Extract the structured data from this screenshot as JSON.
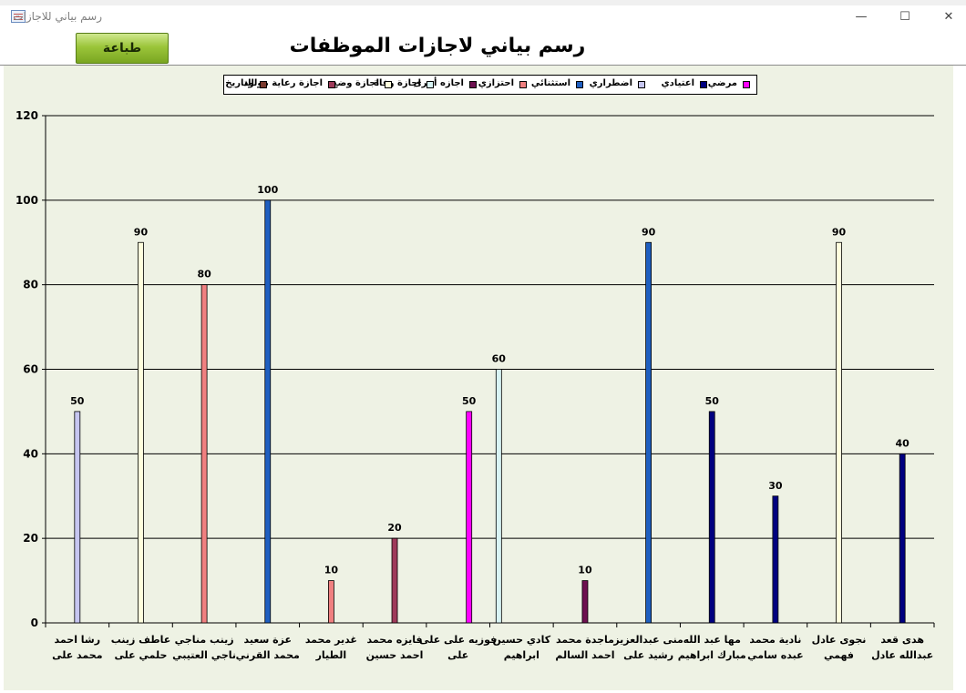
{
  "window": {
    "title": "رسم بياني للاجازات",
    "minimize": "—",
    "maximize": "☐",
    "close": "✕"
  },
  "toolbar": {
    "print_label": "طباعة"
  },
  "page_title": "رسم بياني لاجازات الموظفات",
  "legend_items": [
    {
      "label": "مرضي",
      "color": "#ff00ff"
    },
    {
      "label": "اعتيادي",
      "color": "#000080"
    },
    {
      "label": "اضطراري",
      "color": "#c6c6f0"
    },
    {
      "label": "استثنائي",
      "color": "#1f5fc0"
    },
    {
      "label": "احتزازي",
      "color": "#f08080"
    },
    {
      "label": "اجازه أخرى",
      "color": "#6e1151"
    },
    {
      "label": "اجازة وفاة",
      "color": "#d8f4f4"
    },
    {
      "label": "اجازة وضع",
      "color": "#ffffdd"
    },
    {
      "label": "اجازة رعاية مولود",
      "color": "#9e3a5a"
    },
    {
      "label": "التاريخ",
      "color": "#7b3a2e"
    }
  ],
  "chart_data": {
    "type": "bar",
    "ylim": [
      0,
      120
    ],
    "yticks": [
      0,
      20,
      40,
      60,
      80,
      100,
      120
    ],
    "grid": true,
    "legend_position": "top",
    "categories": [
      [
        "رشا احمد",
        "محمد على"
      ],
      [
        "عاطف زينب",
        "حلمي على"
      ],
      [
        "زينب مناجي",
        "ناجي العتيبي"
      ],
      [
        "عزة سعيد",
        "محمد القرني"
      ],
      [
        "غدير محمد",
        "الطيار"
      ],
      [
        "فايزه محمد",
        "احمد حسين"
      ],
      [
        "فوزيه على على",
        "على"
      ],
      [
        "كادي حسين",
        "ابراهيم"
      ],
      [
        "ماجدة محمد",
        "احمد السالم"
      ],
      [
        "منى عبدالعزيز",
        "رشيد على"
      ],
      [
        "مها عبد الله",
        "مبارك ابراهيم"
      ],
      [
        "نادية محمد",
        "عبده سامي"
      ],
      [
        "نجوى عادل",
        "فهمي"
      ],
      [
        "هدى قعد",
        "عبدالله عادل"
      ]
    ],
    "bars": [
      {
        "category": 0,
        "value": 50,
        "label": "50",
        "color": "#c6c6f0"
      },
      {
        "category": 1,
        "value": 90,
        "label": "90",
        "color": "#ffffdd"
      },
      {
        "category": 2,
        "value": 80,
        "label": "80",
        "color": "#f08080"
      },
      {
        "category": 3,
        "value": 100,
        "label": "100",
        "color": "#1f5fc0"
      },
      {
        "category": 4,
        "value": 10,
        "label": "10",
        "color": "#f08080"
      },
      {
        "category": 5,
        "value": 20,
        "label": "20",
        "color": "#9e3a5a"
      },
      {
        "category": 6,
        "value": 50,
        "label": "50",
        "color": "#ff00ff"
      },
      {
        "category": 7,
        "value": 60,
        "label": "60",
        "color": "#d8f4f4"
      },
      {
        "category": 8,
        "value": 10,
        "label": "10",
        "color": "#6e1151"
      },
      {
        "category": 9,
        "value": 90,
        "label": "90",
        "color": "#1f5fc0"
      },
      {
        "category": 10,
        "value": 50,
        "label": "50",
        "color": "#000080"
      },
      {
        "category": 11,
        "value": 30,
        "label": "30",
        "color": "#000080"
      },
      {
        "category": 12,
        "value": 90,
        "label": "90",
        "color": "#ffffdd"
      },
      {
        "category": 13,
        "value": 40,
        "label": "40",
        "color": "#000080"
      }
    ]
  }
}
